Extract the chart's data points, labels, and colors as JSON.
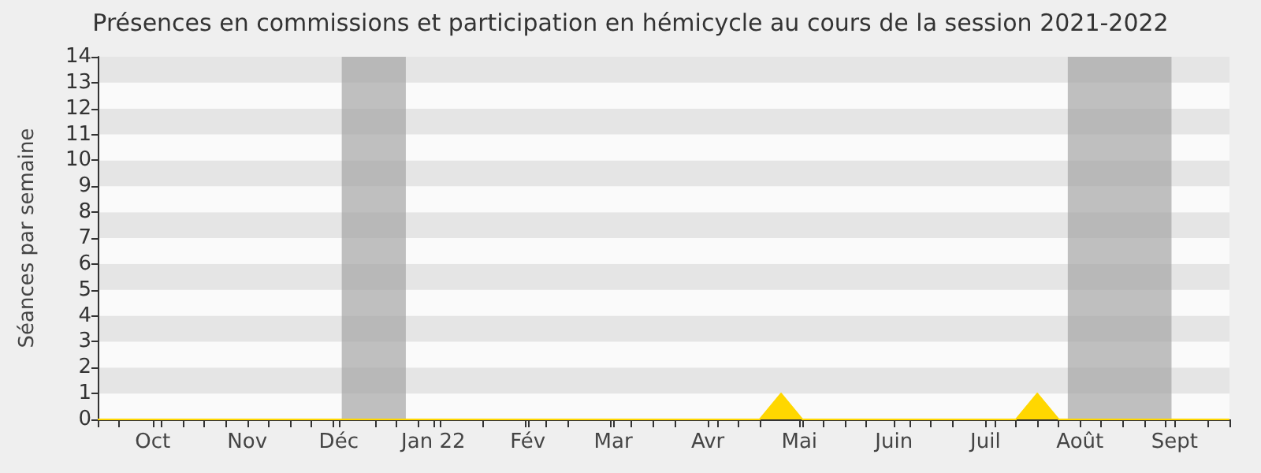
{
  "chart_data": {
    "type": "area",
    "title": "Présences en commissions et participation en hémicycle au cours de la session 2021-2022",
    "ylabel": "Séances par semaine",
    "x": [
      "2021-09-13",
      "2021-09-20",
      "2021-09-27",
      "2021-10-04",
      "2021-10-11",
      "2021-10-18",
      "2021-10-25",
      "2021-11-01",
      "2021-11-08",
      "2021-11-15",
      "2021-11-22",
      "2021-11-29",
      "2021-12-06",
      "2021-12-13",
      "2021-12-20",
      "2021-12-27",
      "2022-01-03",
      "2022-01-10",
      "2022-01-17",
      "2022-01-24",
      "2022-01-31",
      "2022-02-07",
      "2022-02-14",
      "2022-02-21",
      "2022-02-28",
      "2022-03-07",
      "2022-03-14",
      "2022-03-21",
      "2022-03-28",
      "2022-04-04",
      "2022-04-11",
      "2022-04-18",
      "2022-04-25",
      "2022-05-02",
      "2022-05-09",
      "2022-05-16",
      "2022-05-23",
      "2022-05-30",
      "2022-06-06",
      "2022-06-13",
      "2022-06-20",
      "2022-06-27",
      "2022-07-04",
      "2022-07-11",
      "2022-07-18",
      "2022-07-25",
      "2022-08-01",
      "2022-08-08",
      "2022-08-15",
      "2022-08-22",
      "2022-08-29",
      "2022-09-05",
      "2022-09-12",
      "2022-09-19"
    ],
    "series": [
      {
        "color": "#ffd700",
        "values": [
          0,
          0,
          0,
          0,
          0,
          0,
          0,
          0,
          0,
          0,
          0,
          0,
          0,
          0,
          0,
          0,
          0,
          0,
          0,
          0,
          0,
          0,
          0,
          0,
          0,
          0,
          0,
          0,
          0,
          0,
          0,
          0,
          1,
          0,
          0,
          0,
          0,
          0,
          0,
          0,
          0,
          0,
          0,
          0,
          1,
          0,
          0,
          0,
          0,
          0,
          0,
          0,
          0,
          0
        ]
      }
    ],
    "xlim": [
      "2021-09-13",
      "2022-09-19"
    ],
    "xticks": [
      {
        "value": "2021-09-13",
        "label": null
      },
      {
        "value": "2021-09-20",
        "label": null
      },
      {
        "value": "2021-10-01",
        "label": "Oct"
      },
      {
        "value": "2021-10-04",
        "label": null
      },
      {
        "value": "2021-10-11",
        "label": null
      },
      {
        "value": "2021-10-18",
        "label": null
      },
      {
        "value": "2021-10-25",
        "label": null
      },
      {
        "value": "2021-11-01",
        "label": "Nov"
      },
      {
        "value": "2021-11-08",
        "label": null
      },
      {
        "value": "2021-11-15",
        "label": null
      },
      {
        "value": "2021-11-22",
        "label": null
      },
      {
        "value": "2021-11-29",
        "label": null
      },
      {
        "value": "2021-12-01",
        "label": "Déc"
      },
      {
        "value": "2021-12-13",
        "label": null
      },
      {
        "value": "2021-12-20",
        "label": null
      },
      {
        "value": "2021-12-27",
        "label": null
      },
      {
        "value": "2022-01-03",
        "label": null
      },
      {
        "value": "2022-01-01",
        "label": "Jan 22"
      },
      {
        "value": "2022-01-17",
        "label": null
      },
      {
        "value": "2022-02-01",
        "label": "Fév"
      },
      {
        "value": "2022-01-31",
        "label": null
      },
      {
        "value": "2022-02-07",
        "label": null
      },
      {
        "value": "2022-02-14",
        "label": null
      },
      {
        "value": "2022-03-01",
        "label": "Mar"
      },
      {
        "value": "2022-02-28",
        "label": null
      },
      {
        "value": "2022-03-07",
        "label": null
      },
      {
        "value": "2022-03-14",
        "label": null
      },
      {
        "value": "2022-03-21",
        "label": null
      },
      {
        "value": "2022-04-01",
        "label": "Avr"
      },
      {
        "value": "2022-04-04",
        "label": null
      },
      {
        "value": "2022-04-11",
        "label": null
      },
      {
        "value": "2022-04-18",
        "label": null
      },
      {
        "value": "2022-05-01",
        "label": "Mai"
      },
      {
        "value": "2022-05-02",
        "label": null
      },
      {
        "value": "2022-05-09",
        "label": null
      },
      {
        "value": "2022-05-16",
        "label": null
      },
      {
        "value": "2022-05-23",
        "label": null
      },
      {
        "value": "2022-06-01",
        "label": "Juin"
      },
      {
        "value": "2022-06-06",
        "label": null
      },
      {
        "value": "2022-06-13",
        "label": null
      },
      {
        "value": "2022-06-20",
        "label": null
      },
      {
        "value": "2022-07-01",
        "label": "Juil"
      },
      {
        "value": "2022-07-04",
        "label": null
      },
      {
        "value": "2022-07-11",
        "label": null
      },
      {
        "value": "2022-07-18",
        "label": null
      },
      {
        "value": "2022-07-25",
        "label": null
      },
      {
        "value": "2022-08-01",
        "label": "Août"
      },
      {
        "value": "2022-08-08",
        "label": null
      },
      {
        "value": "2022-08-15",
        "label": null
      },
      {
        "value": "2022-08-22",
        "label": null
      },
      {
        "value": "2022-08-29",
        "label": null
      },
      {
        "value": "2022-09-01",
        "label": "Sept"
      },
      {
        "value": "2022-09-12",
        "label": null
      },
      {
        "value": "2022-09-19",
        "label": null
      }
    ],
    "ylim": [
      0,
      14
    ],
    "yticks": [
      0,
      1,
      2,
      3,
      4,
      5,
      6,
      7,
      8,
      9,
      10,
      11,
      12,
      13,
      14
    ],
    "bands": [
      {
        "axis": "x",
        "from": "2021-12-02",
        "to": "2021-12-23",
        "color": "#a0a0a0"
      },
      {
        "axis": "x",
        "from": "2022-07-28",
        "to": "2022-08-31",
        "color": "#a0a0a0"
      }
    ],
    "marker": "none",
    "line_style": "solid"
  }
}
